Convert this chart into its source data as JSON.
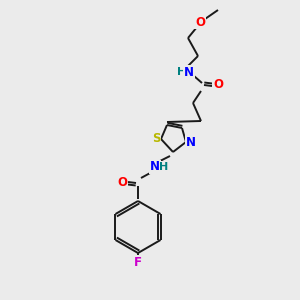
{
  "background_color": "#ebebeb",
  "bond_color": "#1a1a1a",
  "atom_colors": {
    "N": "#0000ff",
    "O": "#ff0000",
    "S": "#b8b800",
    "F": "#cc00cc",
    "H": "#008080",
    "C": "#1a1a1a"
  },
  "figsize": [
    3.0,
    3.0
  ],
  "dpi": 100,
  "lw": 1.4,
  "fontsize": 8.5
}
